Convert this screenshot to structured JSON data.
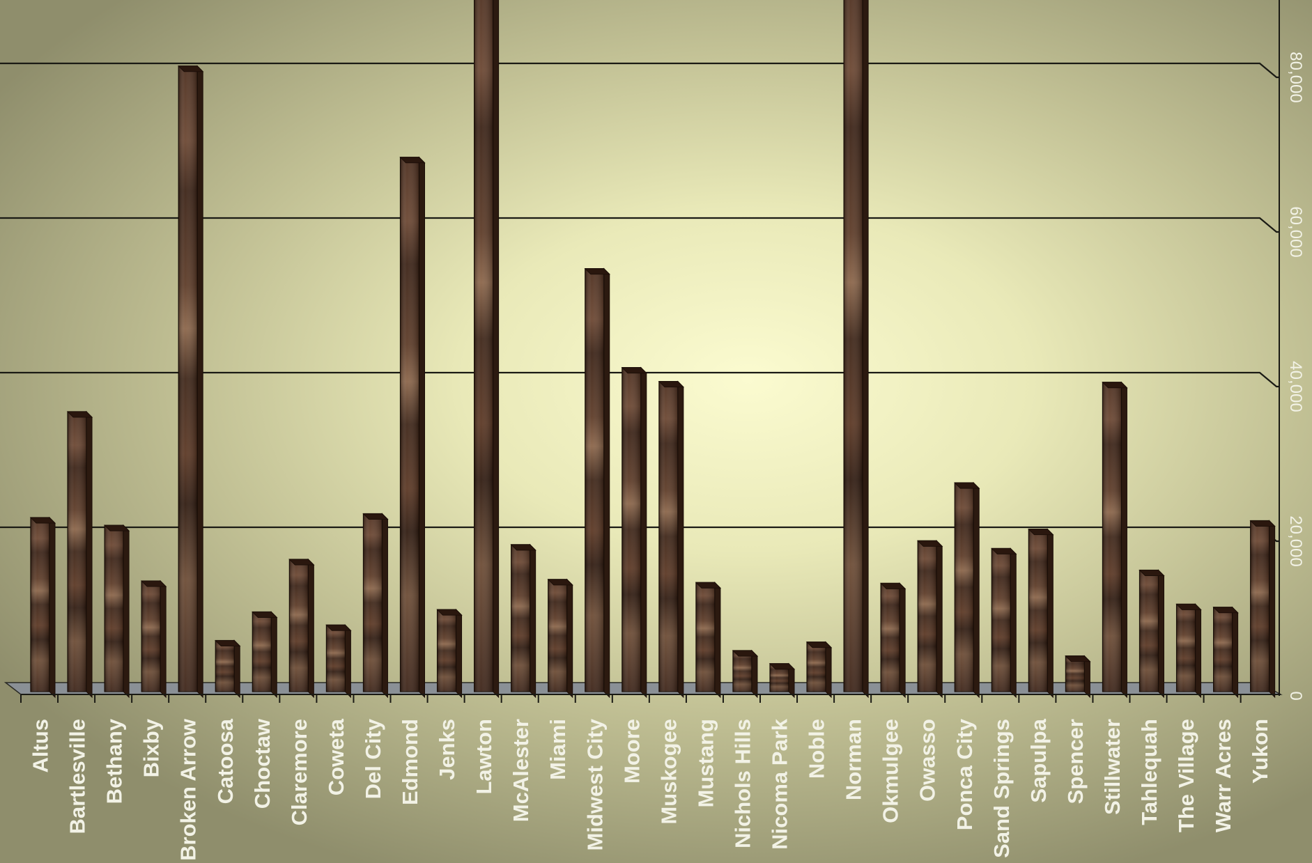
{
  "chart_data": {
    "type": "bar",
    "categories": [
      "Altus",
      "Bartlesville",
      "Bethany",
      "Bixby",
      "Broken Arrow",
      "Catoosa",
      "Choctaw",
      "Claremore",
      "Coweta",
      "Del City",
      "Edmond",
      "Jenks",
      "Lawton",
      "McAlester",
      "Miami",
      "Midwest City",
      "Moore",
      "Muskogee",
      "Mustang",
      "Nichols Hills",
      "Nicoma Park",
      "Noble",
      "Norman",
      "Okmulgee",
      "Owasso",
      "Ponca City",
      "Sand Springs",
      "Sapulpa",
      "Spencer",
      "Stillwater",
      "Tahlequah",
      "The Village",
      "Warr Acres",
      "Yukon"
    ],
    "values": [
      21800,
      35500,
      20800,
      13600,
      80200,
      5900,
      9600,
      16400,
      7900,
      22300,
      68400,
      9900,
      92000,
      18300,
      13800,
      54000,
      41200,
      39400,
      13400,
      4600,
      2900,
      5700,
      96000,
      13300,
      18800,
      26300,
      17800,
      20300,
      3900,
      39300,
      15000,
      10600,
      10200,
      21400
    ],
    "yticks": [
      0,
      20000,
      40000,
      60000,
      80000
    ],
    "ytick_labels": [
      "0",
      "20,000",
      "40,000",
      "60,000",
      "80,000"
    ],
    "ylim": [
      0,
      89000
    ],
    "title": "",
    "xlabel": "",
    "ylabel": "",
    "grid": true,
    "colors": {
      "bar": "#4a2e1e",
      "bar_top": "#2a170e",
      "grid": "#1a1a14",
      "floor": "#8a9096",
      "label": "#f2f2e6"
    }
  }
}
